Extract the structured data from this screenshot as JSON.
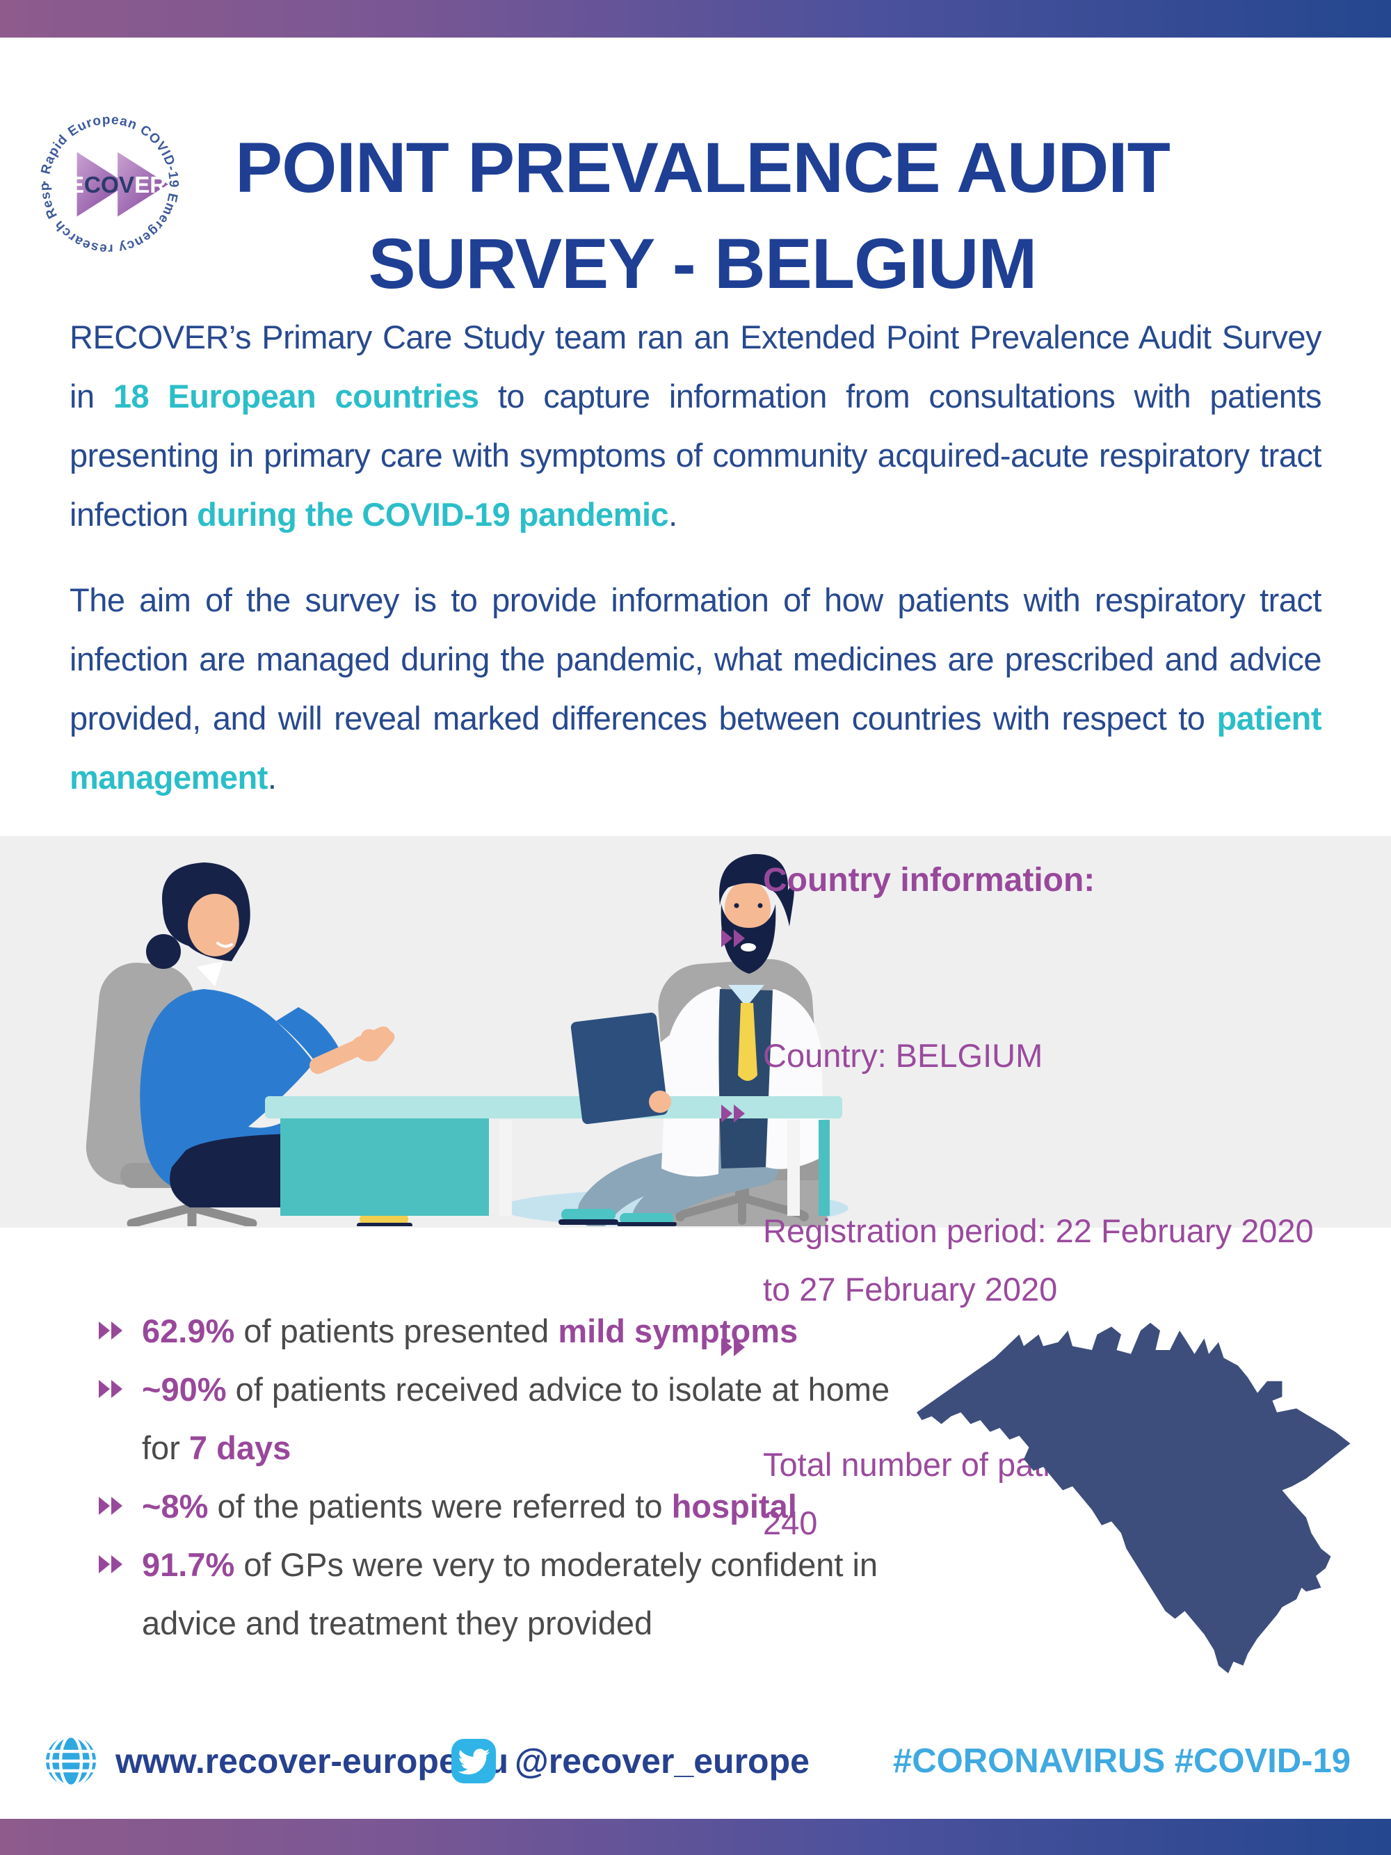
{
  "header": {
    "title_line1": "POINT PREVALENCE AUDIT",
    "title_line2": "SURVEY - BELGIUM"
  },
  "logo": {
    "ring_text": "· Rapid European COVID-19 Emergency research Response",
    "wordmark_re": "RE",
    "wordmark_cov": "COV",
    "wordmark_er": "ER"
  },
  "intro": {
    "p1_segments": [
      {
        "t": "RECOVER’s Primary Care Study team ran an Extended Point Prevalence Audit Survey in "
      },
      {
        "t": "18 European countries",
        "c": "accent"
      },
      {
        "t": " to capture information from consultations with patients presenting in primary care with symptoms of community acquired-acute respiratory tract infection "
      },
      {
        "t": "during the COVID-19 pandemic",
        "c": "accent"
      },
      {
        "t": "."
      }
    ],
    "p2_segments": [
      {
        "t": "The aim of the survey is to provide information of how patients with respiratory tract infection are managed during the pandemic, what medicines are prescribed and advice provided, and will reveal marked differences between countries with respect to "
      },
      {
        "t": "patient management",
        "c": "accent"
      },
      {
        "t": "."
      }
    ]
  },
  "country_info": {
    "heading": "Country information:",
    "items": [
      [
        "Country: BELGIUM"
      ],
      [
        "Registration period: 22 February 2020",
        "to 27 February 2020"
      ],
      [
        "Total number of patient consultations:",
        "240"
      ]
    ]
  },
  "stats": {
    "items": [
      [
        {
          "t": "62.9%",
          "c": "em"
        },
        {
          "t": " of patients presented "
        },
        {
          "t": "mild symptoms",
          "c": "em"
        }
      ],
      [
        {
          "t": "~90%",
          "c": "em"
        },
        {
          "t": " of patients received advice to isolate at home for "
        },
        {
          "t": "7 days",
          "c": "em"
        }
      ],
      [
        {
          "t": "~8%",
          "c": "em"
        },
        {
          "t": " of the patients were referred to "
        },
        {
          "t": "hospital",
          "c": "em"
        }
      ],
      [
        {
          "t": "91.7%",
          "c": "em"
        },
        {
          "t": " of GPs were very to moderately confident in advice and treatment they provided"
        }
      ]
    ]
  },
  "footer": {
    "website": "www.recover-europe.eu",
    "twitter_handle": "@recover_europe",
    "hashtags": "#CORONAVIRUS #COVID-19"
  },
  "map": {
    "region": "Belgium"
  },
  "illustration": {
    "description": "Patient consulting with a doctor at a desk"
  },
  "colors": {
    "title_blue": "#1e3f94",
    "body_blue": "#27498f",
    "accent_teal": "#2bbec9",
    "purple": "#98489b",
    "stats_gray": "#4a4a4a",
    "map_blue": "#3d4e7c",
    "footer_blue": "#2fa7df",
    "hashtag_blue": "#3fa9e1",
    "band_gray": "#efeff0",
    "gradient_left": "#8e5b8c",
    "gradient_right": "#24478f"
  }
}
